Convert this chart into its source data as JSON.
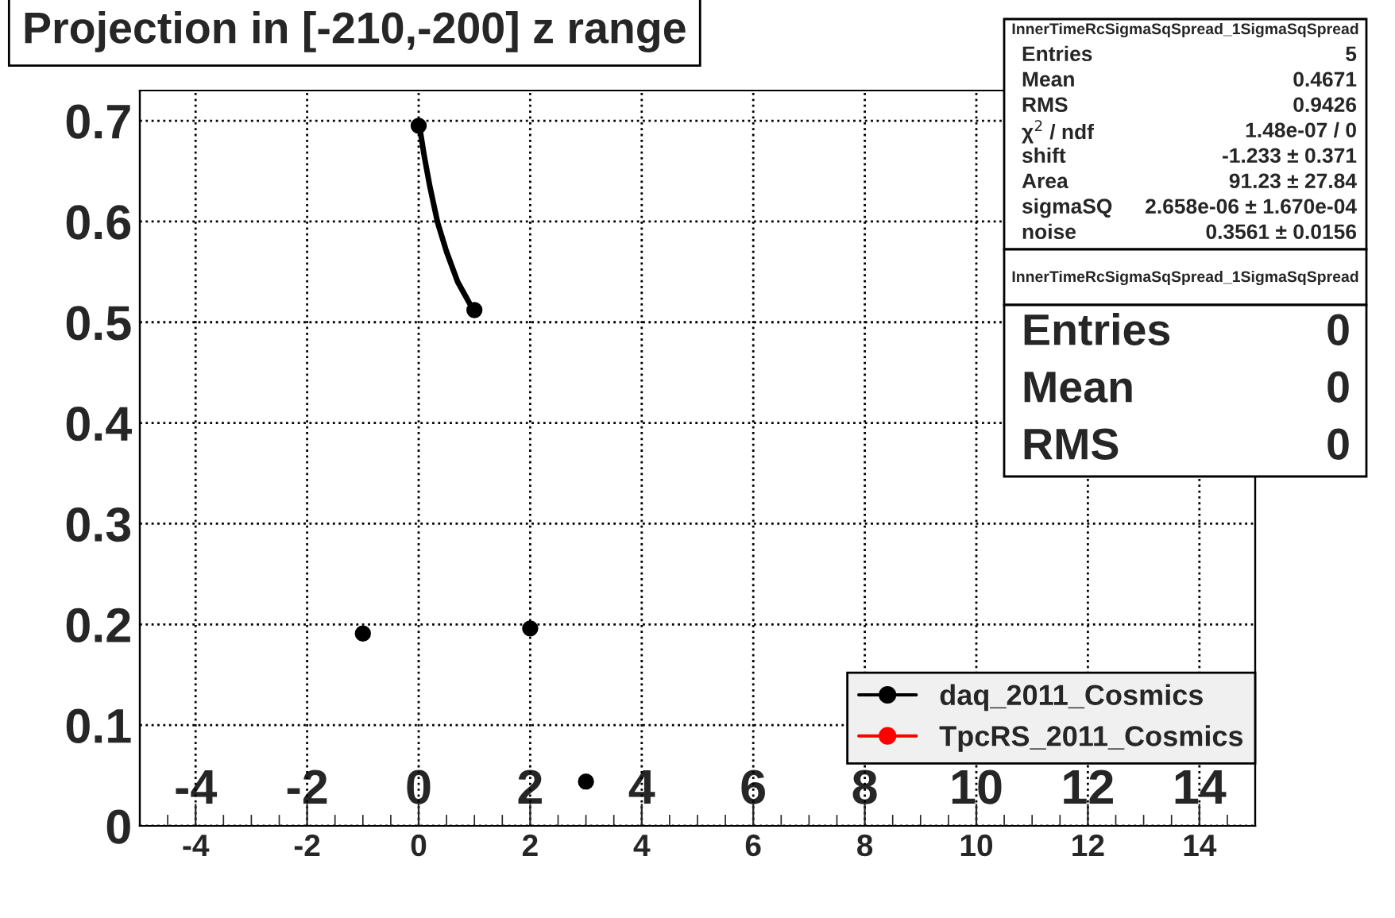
{
  "chart_data": {
    "type": "scatter",
    "title": "Projection in [-210,-200] z range",
    "xlim": [
      -5,
      15
    ],
    "xticks": [
      -4,
      -2,
      0,
      2,
      4,
      6,
      8,
      10,
      12,
      14
    ],
    "x2lim": [
      -5,
      15
    ],
    "x2ticks": [
      -4,
      -2,
      0,
      2,
      4,
      6,
      8,
      10,
      12,
      14
    ],
    "ylim": [
      0,
      0.73
    ],
    "yticks": [
      0,
      0.1,
      0.2,
      0.3,
      0.4,
      0.5,
      0.6,
      0.7
    ],
    "grid": true,
    "legend": "bottom right",
    "series": [
      {
        "name": "daq_2011_Cosmics",
        "color": "#000000",
        "marker": "circle",
        "x": [
          -1,
          0,
          1,
          2,
          3
        ],
        "values": [
          0.191,
          0.695,
          0.512,
          0.196,
          0.044
        ]
      },
      {
        "name": "TpcRS_2011_Cosmics",
        "color": "#ff0000",
        "marker": "circle"
      },
      {
        "type": "line",
        "color": "#000000",
        "x": [
          0,
          0.1,
          0.2,
          0.34,
          0.5,
          0.7,
          0.85,
          1
        ],
        "values": [
          0.7,
          0.665,
          0.635,
          0.599,
          0.57,
          0.54,
          0.525,
          0.51
        ]
      }
    ],
    "annotations": [
      "InnerTimeRcSigmaSqSpread_1SigmaSqSpread",
      "Entries",
      "5",
      "Mean",
      "0.4671",
      "RMS",
      "0.9426",
      "χ$^{2}$ / ndf",
      "1.48e-07 / 0",
      "shift",
      "-1.233 ± 0.371",
      "Area",
      "91.23 ± 27.84",
      "sigmaSQ",
      "2.658e-06 ± 1.670e-04",
      "noise",
      "0.3561 ± 0.0156",
      "InnerTimeRcSigmaSqSpread_1SigmaSqSpread",
      "Entries",
      "0",
      "Mean",
      "0",
      "RMS",
      "0"
    ]
  }
}
